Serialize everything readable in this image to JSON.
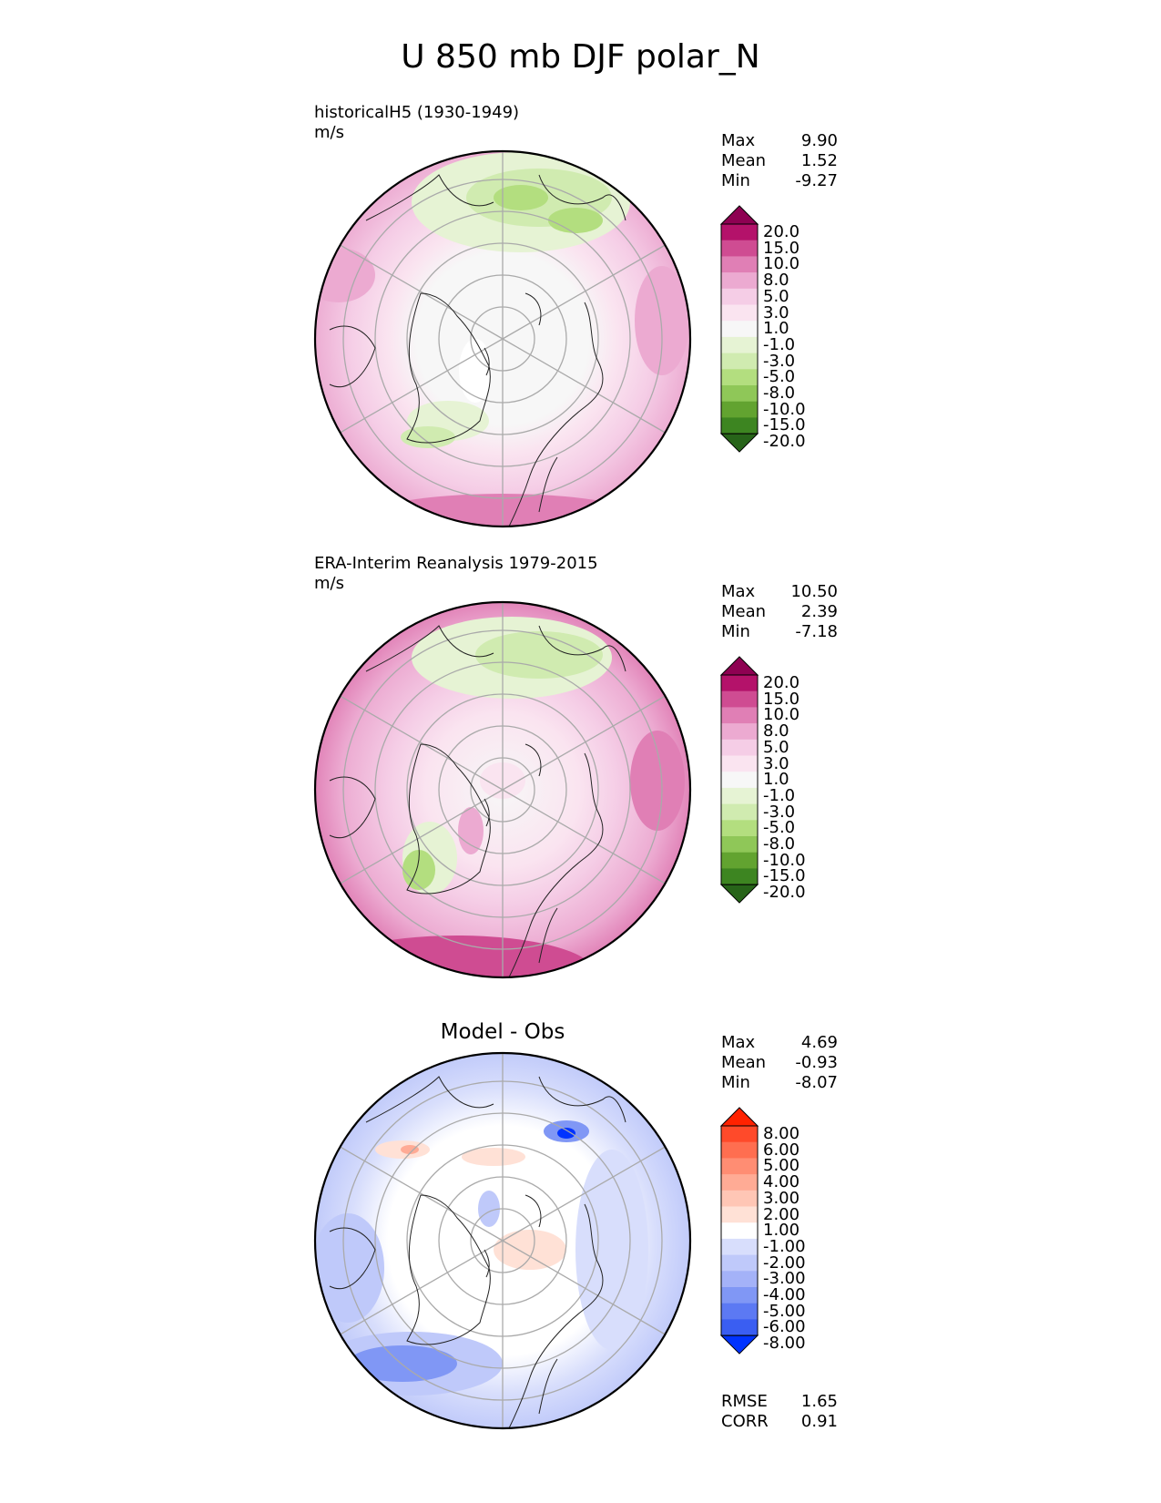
{
  "title": "U 850 mb DJF polar_N",
  "panels": [
    {
      "title_line1": "historicalH5 (1930-1949)",
      "title_line2": "m/s",
      "stats": [
        {
          "label": "Max",
          "value": "9.90"
        },
        {
          "label": "Mean",
          "value": "1.52"
        },
        {
          "label": "Min",
          "value": "-9.27"
        }
      ],
      "colorbar": {
        "labels": [
          "20.0",
          "15.0",
          "10.0",
          "8.0",
          "5.0",
          "3.0",
          "1.0",
          "-1.0",
          "-3.0",
          "-5.0",
          "-8.0",
          "-10.0",
          "-15.0",
          "-20.0"
        ],
        "colors": [
          "#8e0152",
          "#b4126a",
          "#cf4c92",
          "#e07fb5",
          "#ecaad1",
          "#f5cde6",
          "#fae4f0",
          "#f7f7f7",
          "#e6f3d4",
          "#d0ebb0",
          "#b3de7f",
          "#8fc758",
          "#62a330",
          "#3d8521",
          "#276419"
        ]
      }
    },
    {
      "title_line1": "ERA-Interim Reanalysis 1979-2015",
      "title_line2": "m/s",
      "stats": [
        {
          "label": "Max",
          "value": "10.50"
        },
        {
          "label": "Mean",
          "value": "2.39"
        },
        {
          "label": "Min",
          "value": "-7.18"
        }
      ],
      "colorbar": {
        "labels": [
          "20.0",
          "15.0",
          "10.0",
          "8.0",
          "5.0",
          "3.0",
          "1.0",
          "-1.0",
          "-3.0",
          "-5.0",
          "-8.0",
          "-10.0",
          "-15.0",
          "-20.0"
        ],
        "colors": [
          "#8e0152",
          "#b4126a",
          "#cf4c92",
          "#e07fb5",
          "#ecaad1",
          "#f5cde6",
          "#fae4f0",
          "#f7f7f7",
          "#e6f3d4",
          "#d0ebb0",
          "#b3de7f",
          "#8fc758",
          "#62a330",
          "#3d8521",
          "#276419"
        ]
      }
    },
    {
      "title": "Model - Obs",
      "stats": [
        {
          "label": "Max",
          "value": "4.69"
        },
        {
          "label": "Mean",
          "value": "-0.93"
        },
        {
          "label": "Min",
          "value": "-8.07"
        }
      ],
      "metrics": [
        {
          "label": "RMSE",
          "value": "1.65"
        },
        {
          "label": "CORR",
          "value": "0.91"
        }
      ],
      "colorbar": {
        "labels": [
          "8.00",
          "6.00",
          "5.00",
          "4.00",
          "3.00",
          "2.00",
          "1.00",
          "-1.00",
          "-2.00",
          "-3.00",
          "-4.00",
          "-5.00",
          "-6.00",
          "-8.00"
        ],
        "colors": [
          "#ff2200",
          "#ff4a2a",
          "#ff6e50",
          "#ff8d73",
          "#ffab95",
          "#ffc6b5",
          "#ffe1d6",
          "#ffffff",
          "#d8defc",
          "#bfc9fa",
          "#a4b2f8",
          "#8097f5",
          "#5c79f3",
          "#3a5ef2",
          "#0033ff"
        ]
      }
    }
  ]
}
